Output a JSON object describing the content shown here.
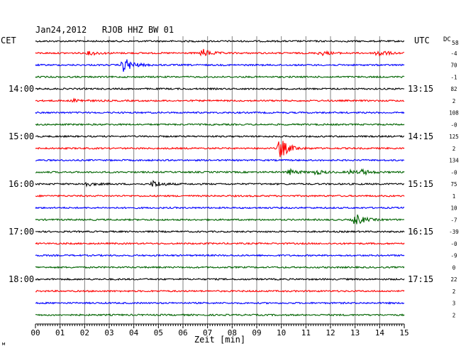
{
  "chart_data": {
    "type": "line",
    "title": "Jan24,2012   RJOB HHZ BW 01",
    "left_label": "CET",
    "right_label": "UTC",
    "dc_label": "DC",
    "dc_value_top": "58",
    "xlabel": "Zeit [min]",
    "xlim": [
      0,
      15
    ],
    "x_ticks": [
      "00",
      "01",
      "02",
      "03",
      "04",
      "05",
      "06",
      "07",
      "08",
      "09",
      "10",
      "11",
      "12",
      "13",
      "14",
      "15"
    ],
    "grid": true,
    "left_hours": [
      {
        "row": 4,
        "label": "14:00"
      },
      {
        "row": 8,
        "label": "15:00"
      },
      {
        "row": 12,
        "label": "16:00"
      },
      {
        "row": 16,
        "label": "17:00"
      },
      {
        "row": 20,
        "label": "18:00"
      }
    ],
    "right_hours": [
      {
        "row": 4,
        "label": "13:15"
      },
      {
        "row": 8,
        "label": "14:15"
      },
      {
        "row": 12,
        "label": "15:15"
      },
      {
        "row": 16,
        "label": "16:15"
      },
      {
        "row": 20,
        "label": "17:15"
      }
    ],
    "row_colors": [
      "#000000",
      "#ff0000",
      "#0000ff",
      "#006400"
    ],
    "series": [
      {
        "row": 0,
        "dc": "",
        "events": []
      },
      {
        "row": 1,
        "dc": "-4",
        "events": [
          {
            "t": 2.2,
            "amp": 0.35
          },
          {
            "t": 6.8,
            "amp": 0.7
          },
          {
            "t": 11.6,
            "amp": 0.4
          },
          {
            "t": 13.9,
            "amp": 0.7
          }
        ]
      },
      {
        "row": 2,
        "dc": "70",
        "events": [
          {
            "t": 3.6,
            "amp": 1.4
          }
        ]
      },
      {
        "row": 3,
        "dc": "-1",
        "events": []
      },
      {
        "row": 4,
        "dc": "82",
        "events": []
      },
      {
        "row": 5,
        "dc": "2",
        "events": [
          {
            "t": 1.6,
            "amp": 0.3
          }
        ]
      },
      {
        "row": 6,
        "dc": "108",
        "events": []
      },
      {
        "row": 7,
        "dc": "-0",
        "events": []
      },
      {
        "row": 8,
        "dc": "125",
        "events": []
      },
      {
        "row": 9,
        "dc": "2",
        "events": [
          {
            "t": 9.95,
            "amp": 1.8
          }
        ]
      },
      {
        "row": 10,
        "dc": "134",
        "events": []
      },
      {
        "row": 11,
        "dc": "-0",
        "events": [
          {
            "t": 10.3,
            "amp": 0.5
          },
          {
            "t": 11.4,
            "amp": 0.4
          },
          {
            "t": 12.8,
            "amp": 0.3
          },
          {
            "t": 13.3,
            "amp": 0.4
          }
        ]
      },
      {
        "row": 12,
        "dc": "75",
        "events": [
          {
            "t": 2.0,
            "amp": 0.4
          },
          {
            "t": 4.8,
            "amp": 0.6
          }
        ]
      },
      {
        "row": 13,
        "dc": "1",
        "events": []
      },
      {
        "row": 14,
        "dc": "10",
        "events": []
      },
      {
        "row": 15,
        "dc": "-7",
        "events": [
          {
            "t": 13.0,
            "amp": 1.1
          }
        ]
      },
      {
        "row": 16,
        "dc": "-39",
        "events": []
      },
      {
        "row": 17,
        "dc": "-0",
        "events": []
      },
      {
        "row": 18,
        "dc": "-9",
        "events": []
      },
      {
        "row": 19,
        "dc": "0",
        "events": []
      },
      {
        "row": 20,
        "dc": "22",
        "events": []
      },
      {
        "row": 21,
        "dc": "2",
        "events": []
      },
      {
        "row": 22,
        "dc": "3",
        "events": []
      },
      {
        "row": 23,
        "dc": "2",
        "events": []
      }
    ]
  }
}
